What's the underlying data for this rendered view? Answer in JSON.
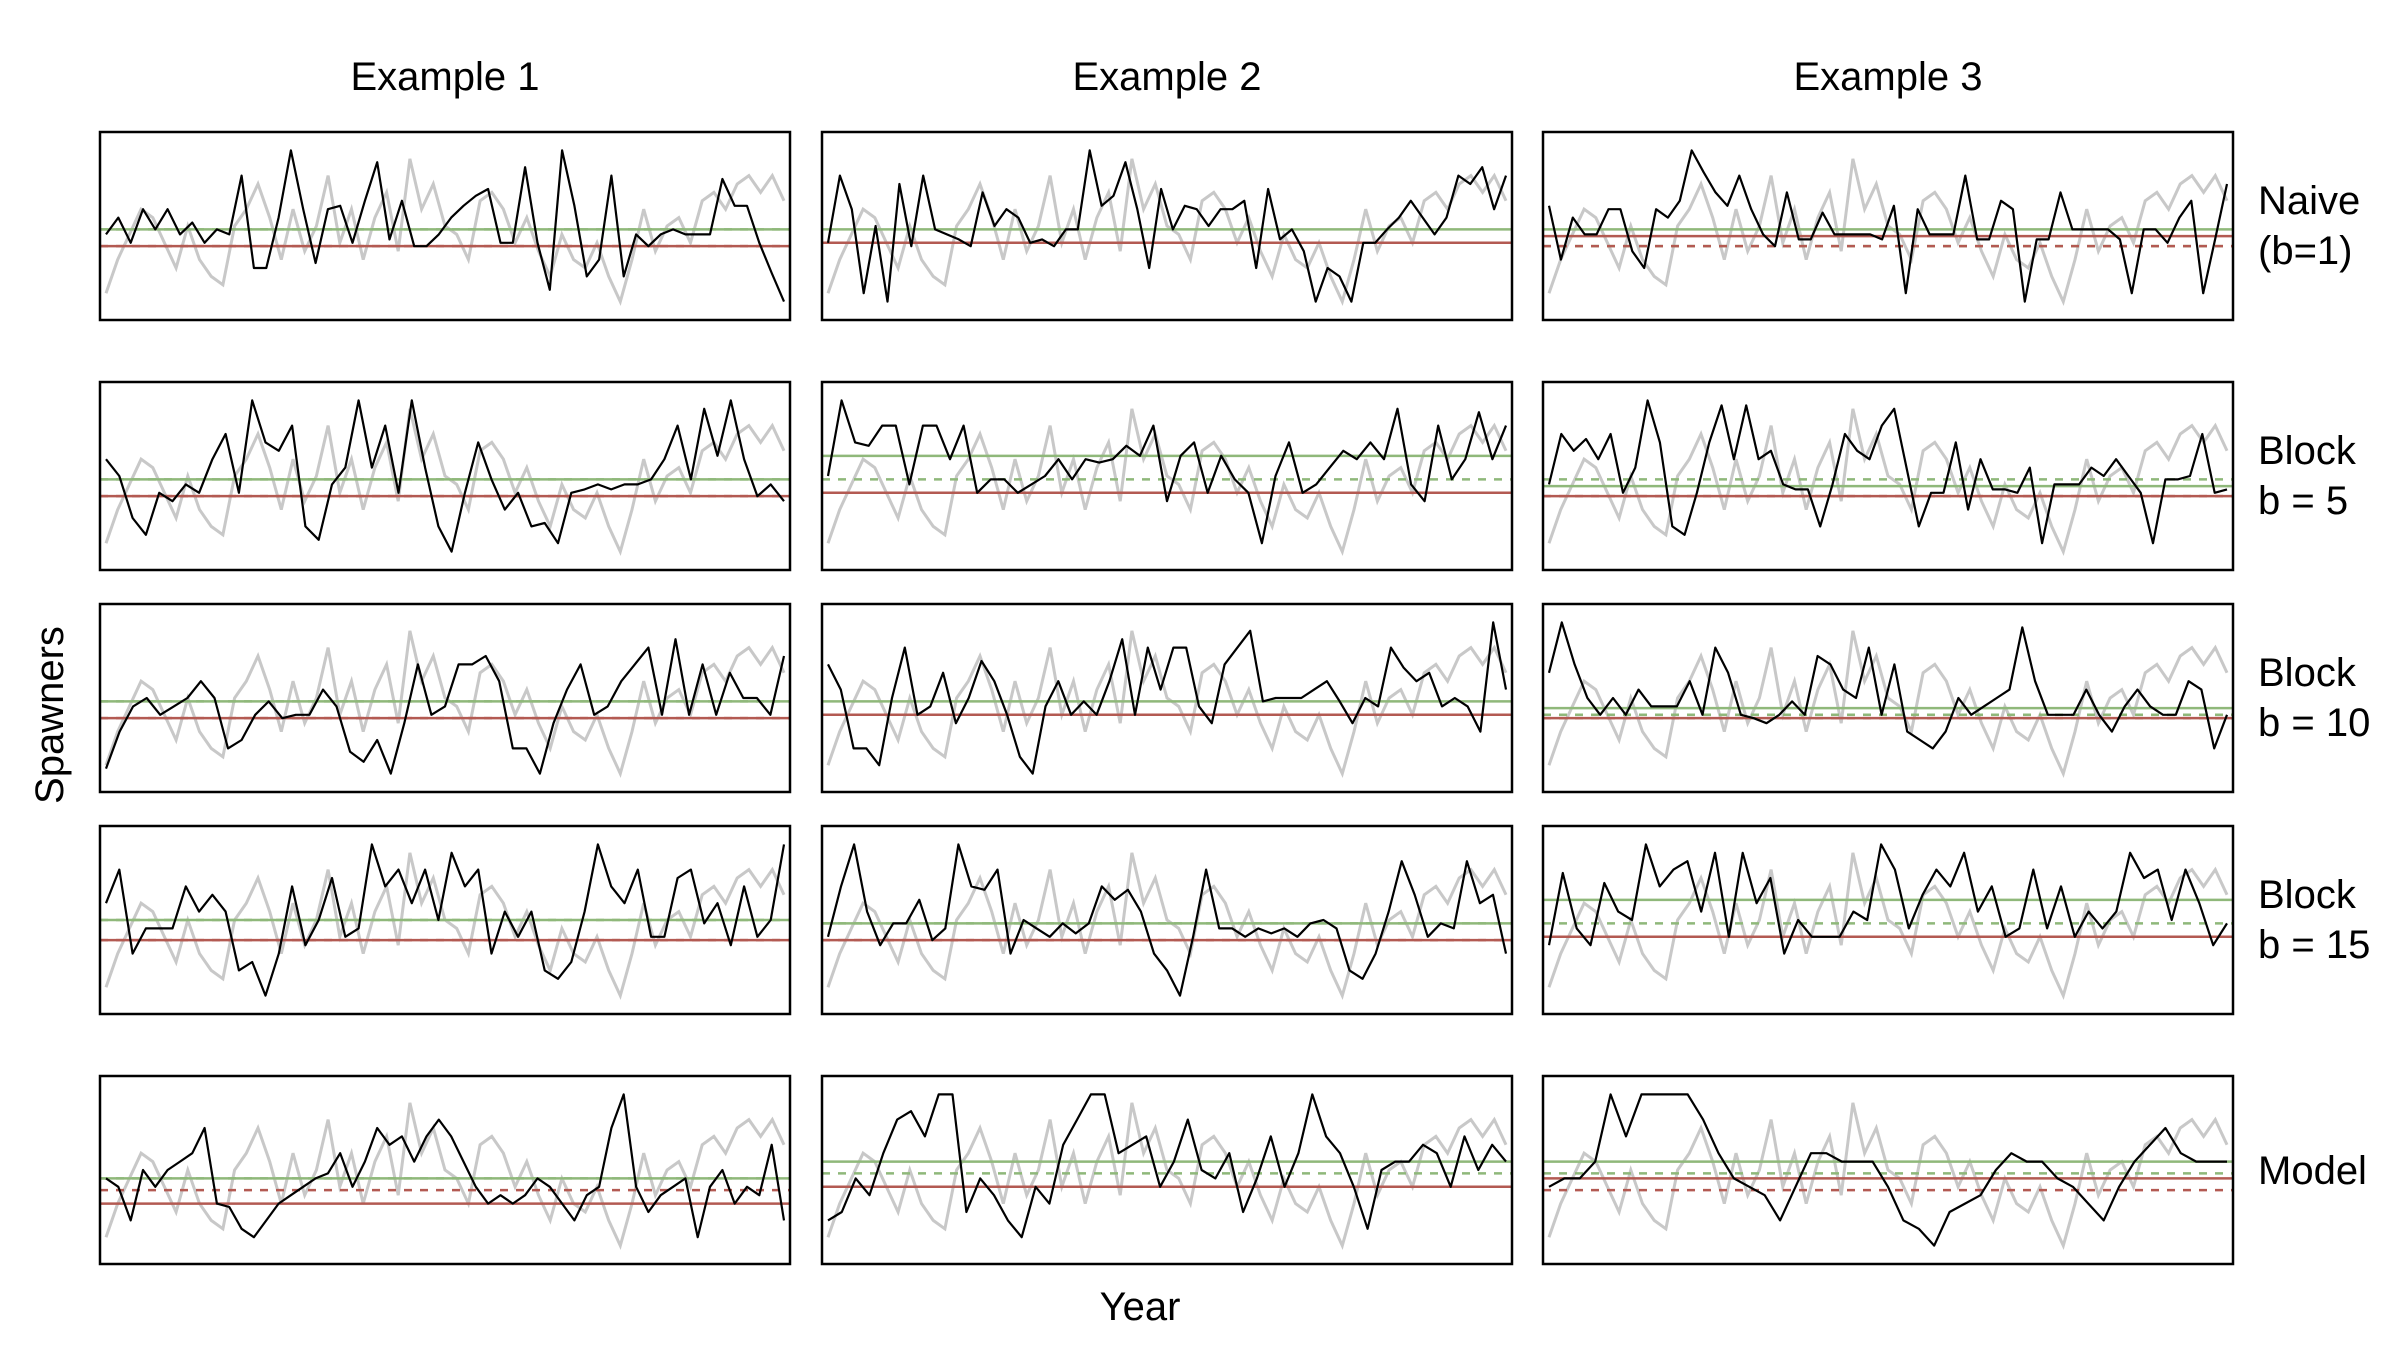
{
  "xlabel": "Year",
  "ylabel": "Spawners",
  "columns": [
    "Example  1",
    "Example  2",
    "Example  3"
  ],
  "rows": [
    "Naive\n(b=1)",
    "Block\nb = 5",
    "Block\nb = 10",
    "Block\nb = 15",
    "Model"
  ],
  "colors": {
    "observed": "#000000",
    "reference": "#c8c8c8",
    "green_line": "#8fb87a",
    "red_line": "#b35a52"
  },
  "chart_data": {
    "type": "line",
    "layout": "5 rows x 3 columns of small multiples",
    "reference_series": [
      0.1,
      0.3,
      0.45,
      0.6,
      0.55,
      0.4,
      0.25,
      0.5,
      0.3,
      0.2,
      0.15,
      0.5,
      0.6,
      0.75,
      0.55,
      0.3,
      0.6,
      0.35,
      0.5,
      0.8,
      0.4,
      0.6,
      0.3,
      0.55,
      0.7,
      0.35,
      0.9,
      0.6,
      0.75,
      0.5,
      0.45,
      0.3,
      0.65,
      0.7,
      0.6,
      0.4,
      0.55,
      0.35,
      0.2,
      0.45,
      0.3,
      0.25,
      0.4,
      0.2,
      0.05,
      0.3,
      0.6,
      0.35,
      0.5,
      0.55,
      0.4,
      0.65,
      0.7,
      0.6,
      0.75,
      0.8,
      0.7,
      0.8,
      0.65
    ],
    "panels": [
      {
        "row": "Naive (b=1)",
        "column": "Example 1",
        "green_solid": 0.48,
        "green_dashed": 0.48,
        "red_solid": 0.38,
        "red_dashed": 0.38,
        "series": [
          0.45,
          0.55,
          0.4,
          0.6,
          0.48,
          0.6,
          0.45,
          0.52,
          0.4,
          0.48,
          0.45,
          0.8,
          0.25,
          0.25,
          0.55,
          0.95,
          0.6,
          0.28,
          0.6,
          0.62,
          0.4,
          0.65,
          0.88,
          0.42,
          0.65,
          0.38,
          0.38,
          0.45,
          0.55,
          0.62,
          0.68,
          0.72,
          0.4,
          0.4,
          0.85,
          0.4,
          0.12,
          0.95,
          0.62,
          0.2,
          0.3,
          0.8,
          0.2,
          0.45,
          0.38,
          0.45,
          0.48,
          0.45,
          0.45,
          0.45,
          0.78,
          0.62,
          0.62,
          0.4,
          0.22,
          0.05
        ]
      },
      {
        "row": "Naive (b=1)",
        "column": "Example 2",
        "green_solid": 0.48,
        "green_dashed": 0.4,
        "red_solid": 0.4,
        "red_dashed": 0.4,
        "series": [
          0.4,
          0.8,
          0.6,
          0.1,
          0.5,
          0.05,
          0.75,
          0.38,
          0.8,
          0.48,
          0.45,
          0.42,
          0.38,
          0.7,
          0.5,
          0.6,
          0.55,
          0.4,
          0.42,
          0.38,
          0.48,
          0.48,
          0.95,
          0.62,
          0.68,
          0.88,
          0.6,
          0.25,
          0.72,
          0.48,
          0.62,
          0.6,
          0.5,
          0.6,
          0.6,
          0.65,
          0.25,
          0.72,
          0.42,
          0.48,
          0.35,
          0.05,
          0.25,
          0.2,
          0.05,
          0.4,
          0.4,
          0.48,
          0.55,
          0.65,
          0.55,
          0.45,
          0.55,
          0.8,
          0.75,
          0.85,
          0.6,
          0.8
        ]
      },
      {
        "row": "Naive (b=1)",
        "column": "Example 3",
        "green_solid": 0.48,
        "green_dashed": 0.38,
        "red_solid": 0.44,
        "red_dashed": 0.38,
        "series": [
          0.62,
          0.3,
          0.55,
          0.45,
          0.45,
          0.6,
          0.6,
          0.35,
          0.25,
          0.6,
          0.55,
          0.65,
          0.95,
          0.82,
          0.7,
          0.62,
          0.8,
          0.6,
          0.45,
          0.38,
          0.7,
          0.42,
          0.42,
          0.58,
          0.45,
          0.45,
          0.45,
          0.45,
          0.42,
          0.62,
          0.1,
          0.6,
          0.45,
          0.45,
          0.45,
          0.8,
          0.42,
          0.42,
          0.65,
          0.6,
          0.05,
          0.42,
          0.42,
          0.7,
          0.48,
          0.48,
          0.48,
          0.48,
          0.42,
          0.1,
          0.48,
          0.48,
          0.4,
          0.55,
          0.65,
          0.1,
          0.42,
          0.75
        ]
      },
      {
        "row": "Block b = 5",
        "column": "Example 1",
        "green_solid": 0.48,
        "green_dashed": 0.48,
        "red_solid": 0.38,
        "red_dashed": 0.38,
        "series": [
          0.6,
          0.5,
          0.25,
          0.15,
          0.4,
          0.35,
          0.45,
          0.4,
          0.6,
          0.75,
          0.4,
          0.95,
          0.7,
          0.65,
          0.8,
          0.2,
          0.12,
          0.45,
          0.55,
          0.95,
          0.55,
          0.8,
          0.4,
          0.95,
          0.55,
          0.2,
          0.05,
          0.4,
          0.7,
          0.48,
          0.3,
          0.4,
          0.2,
          0.22,
          0.1,
          0.4,
          0.42,
          0.45,
          0.42,
          0.45,
          0.45,
          0.48,
          0.6,
          0.8,
          0.48,
          0.9,
          0.62,
          0.95,
          0.6,
          0.38,
          0.45,
          0.35
        ]
      },
      {
        "row": "Block b = 5",
        "column": "Example 2",
        "green_solid": 0.62,
        "green_dashed": 0.48,
        "red_solid": 0.4,
        "red_dashed": 0.4,
        "series": [
          0.5,
          0.95,
          0.7,
          0.68,
          0.8,
          0.8,
          0.45,
          0.8,
          0.8,
          0.6,
          0.8,
          0.4,
          0.48,
          0.48,
          0.4,
          0.45,
          0.5,
          0.6,
          0.48,
          0.6,
          0.58,
          0.6,
          0.68,
          0.62,
          0.8,
          0.35,
          0.62,
          0.7,
          0.4,
          0.62,
          0.48,
          0.4,
          0.1,
          0.5,
          0.7,
          0.4,
          0.45,
          0.55,
          0.65,
          0.6,
          0.7,
          0.6,
          0.9,
          0.45,
          0.35,
          0.8,
          0.48,
          0.6,
          0.88,
          0.6,
          0.8
        ]
      },
      {
        "row": "Block b = 5",
        "column": "Example 3",
        "green_solid": 0.44,
        "green_dashed": 0.48,
        "red_solid": 0.38,
        "red_dashed": 0.38,
        "series": [
          0.45,
          0.75,
          0.65,
          0.72,
          0.6,
          0.75,
          0.4,
          0.55,
          0.95,
          0.7,
          0.2,
          0.15,
          0.4,
          0.7,
          0.92,
          0.6,
          0.92,
          0.6,
          0.65,
          0.45,
          0.42,
          0.42,
          0.2,
          0.45,
          0.75,
          0.65,
          0.6,
          0.8,
          0.9,
          0.55,
          0.2,
          0.4,
          0.4,
          0.7,
          0.3,
          0.6,
          0.42,
          0.42,
          0.4,
          0.55,
          0.1,
          0.45,
          0.45,
          0.45,
          0.55,
          0.5,
          0.6,
          0.5,
          0.4,
          0.1,
          0.48,
          0.48,
          0.5,
          0.75,
          0.4,
          0.42
        ]
      },
      {
        "row": "Block b = 10",
        "column": "Example 1",
        "green_solid": 0.48,
        "green_dashed": 0.48,
        "red_solid": 0.38,
        "red_dashed": 0.38,
        "series": [
          0.08,
          0.3,
          0.45,
          0.5,
          0.4,
          0.45,
          0.5,
          0.6,
          0.5,
          0.2,
          0.25,
          0.4,
          0.48,
          0.38,
          0.4,
          0.4,
          0.55,
          0.45,
          0.18,
          0.12,
          0.25,
          0.05,
          0.35,
          0.7,
          0.4,
          0.45,
          0.7,
          0.7,
          0.75,
          0.6,
          0.2,
          0.2,
          0.05,
          0.35,
          0.55,
          0.7,
          0.4,
          0.45,
          0.6,
          0.7,
          0.8,
          0.4,
          0.85,
          0.4,
          0.7,
          0.4,
          0.65,
          0.5,
          0.5,
          0.4,
          0.75
        ]
      },
      {
        "row": "Block b = 10",
        "column": "Example 2",
        "green_solid": 0.48,
        "green_dashed": 0.4,
        "red_solid": 0.4,
        "red_dashed": 0.4,
        "series": [
          0.7,
          0.55,
          0.2,
          0.2,
          0.1,
          0.5,
          0.8,
          0.4,
          0.45,
          0.65,
          0.35,
          0.5,
          0.72,
          0.6,
          0.4,
          0.15,
          0.05,
          0.45,
          0.6,
          0.4,
          0.48,
          0.4,
          0.6,
          0.85,
          0.4,
          0.8,
          0.55,
          0.8,
          0.8,
          0.45,
          0.35,
          0.7,
          0.8,
          0.9,
          0.48,
          0.5,
          0.5,
          0.5,
          0.55,
          0.6,
          0.48,
          0.35,
          0.5,
          0.45,
          0.8,
          0.68,
          0.6,
          0.65,
          0.45,
          0.5,
          0.45,
          0.3,
          0.95,
          0.55
        ]
      },
      {
        "row": "Block b = 10",
        "column": "Example 3",
        "green_solid": 0.44,
        "green_dashed": 0.4,
        "red_solid": 0.38,
        "red_dashed": 0.38,
        "series": [
          0.65,
          0.95,
          0.7,
          0.5,
          0.4,
          0.5,
          0.4,
          0.55,
          0.45,
          0.45,
          0.45,
          0.6,
          0.4,
          0.8,
          0.65,
          0.4,
          0.38,
          0.35,
          0.4,
          0.48,
          0.4,
          0.75,
          0.7,
          0.55,
          0.5,
          0.8,
          0.4,
          0.7,
          0.3,
          0.25,
          0.2,
          0.3,
          0.5,
          0.4,
          0.45,
          0.5,
          0.55,
          0.92,
          0.6,
          0.4,
          0.4,
          0.4,
          0.55,
          0.4,
          0.3,
          0.45,
          0.55,
          0.45,
          0.4,
          0.4,
          0.6,
          0.55,
          0.2,
          0.4
        ]
      },
      {
        "row": "Block b = 15",
        "column": "Example 1",
        "green_solid": 0.5,
        "green_dashed": 0.5,
        "red_solid": 0.38,
        "red_dashed": 0.38,
        "series": [
          0.6,
          0.8,
          0.3,
          0.45,
          0.45,
          0.45,
          0.7,
          0.55,
          0.65,
          0.55,
          0.2,
          0.25,
          0.05,
          0.3,
          0.7,
          0.35,
          0.5,
          0.75,
          0.4,
          0.45,
          0.95,
          0.7,
          0.8,
          0.6,
          0.8,
          0.5,
          0.9,
          0.7,
          0.8,
          0.3,
          0.55,
          0.4,
          0.55,
          0.2,
          0.15,
          0.25,
          0.55,
          0.95,
          0.7,
          0.6,
          0.8,
          0.4,
          0.4,
          0.75,
          0.8,
          0.48,
          0.6,
          0.35,
          0.7,
          0.4,
          0.5,
          0.95
        ]
      },
      {
        "row": "Block b = 15",
        "column": "Example 2",
        "green_solid": 0.48,
        "green_dashed": 0.48,
        "red_solid": 0.38,
        "red_dashed": 0.38,
        "series": [
          0.4,
          0.7,
          0.95,
          0.55,
          0.35,
          0.48,
          0.48,
          0.62,
          0.38,
          0.45,
          0.95,
          0.7,
          0.68,
          0.8,
          0.3,
          0.5,
          0.45,
          0.4,
          0.48,
          0.42,
          0.48,
          0.7,
          0.62,
          0.68,
          0.55,
          0.3,
          0.2,
          0.05,
          0.4,
          0.8,
          0.45,
          0.45,
          0.4,
          0.45,
          0.42,
          0.45,
          0.4,
          0.48,
          0.5,
          0.45,
          0.2,
          0.15,
          0.3,
          0.55,
          0.85,
          0.65,
          0.4,
          0.48,
          0.45,
          0.85,
          0.6,
          0.65,
          0.3
        ]
      },
      {
        "row": "Block b = 15",
        "column": "Example 3",
        "green_solid": 0.62,
        "green_dashed": 0.48,
        "red_solid": 0.4,
        "red_dashed": 0.4,
        "series": [
          0.35,
          0.78,
          0.45,
          0.35,
          0.72,
          0.55,
          0.5,
          0.95,
          0.7,
          0.8,
          0.85,
          0.55,
          0.9,
          0.4,
          0.9,
          0.6,
          0.75,
          0.3,
          0.5,
          0.4,
          0.4,
          0.4,
          0.55,
          0.5,
          0.95,
          0.8,
          0.45,
          0.65,
          0.8,
          0.7,
          0.9,
          0.55,
          0.7,
          0.4,
          0.45,
          0.8,
          0.45,
          0.7,
          0.4,
          0.55,
          0.45,
          0.55,
          0.9,
          0.75,
          0.8,
          0.5,
          0.8,
          0.6,
          0.35,
          0.48
        ]
      },
      {
        "row": "Model",
        "column": "Example 1",
        "green_solid": 0.45,
        "green_dashed": 0.45,
        "red_solid": 0.3,
        "red_dashed": 0.38,
        "series": [
          0.45,
          0.4,
          0.2,
          0.5,
          0.4,
          0.5,
          0.55,
          0.6,
          0.75,
          0.3,
          0.28,
          0.15,
          0.1,
          0.2,
          0.3,
          0.35,
          0.4,
          0.45,
          0.48,
          0.6,
          0.4,
          0.55,
          0.75,
          0.65,
          0.7,
          0.55,
          0.7,
          0.8,
          0.7,
          0.55,
          0.4,
          0.3,
          0.35,
          0.3,
          0.35,
          0.45,
          0.4,
          0.3,
          0.2,
          0.35,
          0.4,
          0.75,
          0.95,
          0.4,
          0.25,
          0.35,
          0.4,
          0.45,
          0.1,
          0.4,
          0.5,
          0.3,
          0.4,
          0.35,
          0.65,
          0.2
        ]
      },
      {
        "row": "Model",
        "column": "Example 2",
        "green_solid": 0.55,
        "green_dashed": 0.48,
        "red_solid": 0.4,
        "red_dashed": 0.4,
        "series": [
          0.2,
          0.25,
          0.45,
          0.35,
          0.6,
          0.8,
          0.85,
          0.7,
          0.95,
          0.95,
          0.25,
          0.45,
          0.35,
          0.2,
          0.1,
          0.4,
          0.3,
          0.65,
          0.8,
          0.95,
          0.95,
          0.6,
          0.65,
          0.7,
          0.4,
          0.55,
          0.8,
          0.5,
          0.45,
          0.6,
          0.25,
          0.45,
          0.7,
          0.4,
          0.6,
          0.95,
          0.7,
          0.6,
          0.4,
          0.15,
          0.5,
          0.55,
          0.55,
          0.65,
          0.6,
          0.4,
          0.7,
          0.5,
          0.65,
          0.55
        ]
      },
      {
        "row": "Model",
        "column": "Example 3",
        "green_solid": 0.55,
        "green_dashed": 0.48,
        "red_solid": 0.45,
        "red_dashed": 0.38,
        "series": [
          0.4,
          0.45,
          0.45,
          0.55,
          0.95,
          0.7,
          0.95,
          0.95,
          0.95,
          0.95,
          0.8,
          0.6,
          0.45,
          0.4,
          0.35,
          0.2,
          0.4,
          0.6,
          0.6,
          0.55,
          0.55,
          0.55,
          0.4,
          0.2,
          0.15,
          0.05,
          0.25,
          0.3,
          0.35,
          0.5,
          0.6,
          0.55,
          0.55,
          0.45,
          0.4,
          0.3,
          0.2,
          0.4,
          0.55,
          0.65,
          0.75,
          0.6,
          0.55,
          0.55,
          0.55
        ]
      }
    ]
  }
}
